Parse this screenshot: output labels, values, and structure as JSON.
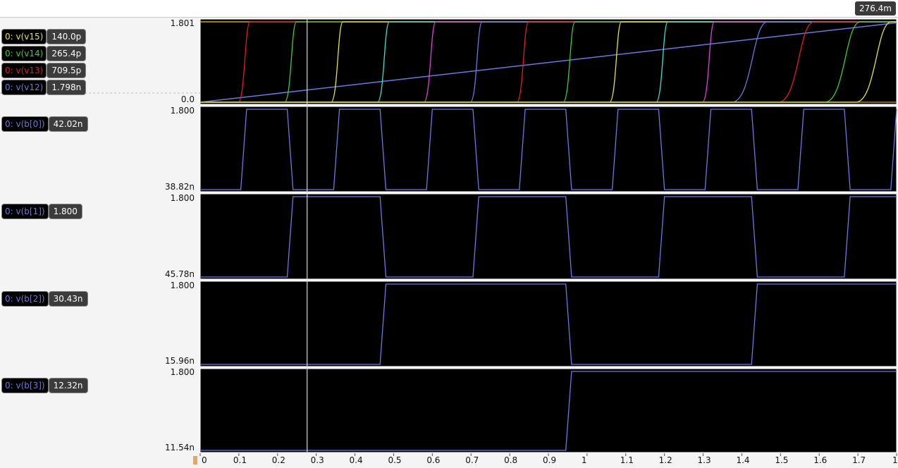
{
  "cursor_readout": "276.4m",
  "cursor_x": 0.2764,
  "x_ticks": [
    "0",
    "0.1",
    "0.2",
    "0.3",
    "0.4",
    "0.5",
    "0.6",
    "0.7",
    "0.8",
    "0.9",
    "1",
    "1.1",
    "1.2",
    "1.3",
    "1.4",
    "1.5",
    "1.6",
    "1.7",
    "1"
  ],
  "colors": {
    "v15": "#e6e642",
    "v14": "#3ad03a",
    "v13": "#e02020",
    "v12": "#6a78e6",
    "v11": "#e040e0",
    "v10": "#40e0d0",
    "trace": "#6a78e6"
  },
  "chart_data": [
    {
      "type": "line",
      "panel": "top",
      "y_max_label": "1.801",
      "y_min_label": "0.0",
      "ylim": [
        0,
        1.801
      ],
      "xlim": [
        0,
        1.8
      ],
      "legend": [
        {
          "name": "0: v(v15)",
          "value": "140.0p",
          "color": "#e6e642"
        },
        {
          "name": "0: v(v14)",
          "value": "265.4p",
          "color": "#3ad03a"
        },
        {
          "name": "0: v(v13)",
          "value": "709.5p",
          "color": "#e02020"
        },
        {
          "name": "0: v(v12)",
          "value": "1.798n",
          "color": "#6a78e6"
        }
      ],
      "ramp": {
        "name": "v(v12)",
        "x": [
          0,
          1.8
        ],
        "y": [
          0,
          1.78
        ],
        "color": "#6a78e6"
      },
      "edges": [
        {
          "x": 0.12,
          "color": "#e02020"
        },
        {
          "x": 0.24,
          "color": "#3ad03a"
        },
        {
          "x": 0.36,
          "color": "#e6e642"
        },
        {
          "x": 0.48,
          "color": "#40e0d0"
        },
        {
          "x": 0.6,
          "color": "#e040e0"
        },
        {
          "x": 0.72,
          "color": "#6a78e6"
        },
        {
          "x": 0.84,
          "color": "#e02020"
        },
        {
          "x": 0.96,
          "color": "#3ad03a"
        },
        {
          "x": 1.08,
          "color": "#e6e642"
        },
        {
          "x": 1.2,
          "color": "#40e0d0"
        },
        {
          "x": 1.32,
          "color": "#e040e0"
        },
        {
          "x": 1.44,
          "color": "#6a78e6"
        },
        {
          "x": 1.56,
          "color": "#e02020"
        },
        {
          "x": 1.68,
          "color": "#3ad03a"
        },
        {
          "x": 1.76,
          "color": "#e6e642"
        }
      ]
    },
    {
      "type": "line",
      "panel": "b0",
      "legend": [
        {
          "name": "0: v(b[0])",
          "value": "42.02n",
          "color": "#6a78e6"
        }
      ],
      "y_max_label": "1.800",
      "y_min_label": "38.82n",
      "x": [
        0,
        0.105,
        0.12,
        0.225,
        0.24,
        0.345,
        0.36,
        0.465,
        0.48,
        0.585,
        0.6,
        0.705,
        0.72,
        0.825,
        0.84,
        0.945,
        0.96,
        1.065,
        1.08,
        1.185,
        1.2,
        1.305,
        1.32,
        1.425,
        1.44,
        1.545,
        1.56,
        1.665,
        1.68,
        1.785,
        1.8
      ],
      "y": [
        0,
        0,
        1.8,
        1.8,
        0,
        0,
        1.8,
        1.8,
        0,
        0,
        1.8,
        1.8,
        0,
        0,
        1.8,
        1.8,
        0,
        0,
        1.8,
        1.8,
        0,
        0,
        1.8,
        1.8,
        0,
        0,
        1.8,
        1.8,
        0,
        0,
        1.8
      ]
    },
    {
      "type": "line",
      "panel": "b1",
      "legend": [
        {
          "name": "0: v(b[1])",
          "value": "1.800",
          "color": "#6a78e6"
        }
      ],
      "y_max_label": "1.800",
      "y_min_label": "45.78n",
      "x": [
        0,
        0.225,
        0.24,
        0.465,
        0.48,
        0.705,
        0.72,
        0.945,
        0.96,
        1.185,
        1.2,
        1.425,
        1.44,
        1.665,
        1.68,
        1.8
      ],
      "y": [
        0,
        0,
        1.8,
        1.8,
        0,
        0,
        1.8,
        1.8,
        0,
        0,
        1.8,
        1.8,
        0,
        0,
        1.8,
        1.8
      ]
    },
    {
      "type": "line",
      "panel": "b2",
      "legend": [
        {
          "name": "0: v(b[2])",
          "value": "30.43n",
          "color": "#6a78e6"
        }
      ],
      "y_max_label": "1.800",
      "y_min_label": "15.96n",
      "x": [
        0,
        0.465,
        0.48,
        0.945,
        0.96,
        1.425,
        1.44,
        1.8
      ],
      "y": [
        0,
        0,
        1.8,
        1.8,
        0,
        0,
        1.8,
        1.8
      ]
    },
    {
      "type": "line",
      "panel": "b3",
      "legend": [
        {
          "name": "0: v(b[3])",
          "value": "12.32n",
          "color": "#6a78e6"
        }
      ],
      "y_max_label": "1.800",
      "y_min_label": "11.54n",
      "x": [
        0,
        0.945,
        0.96,
        1.8
      ],
      "y": [
        0,
        0,
        1.8,
        1.8
      ]
    }
  ]
}
